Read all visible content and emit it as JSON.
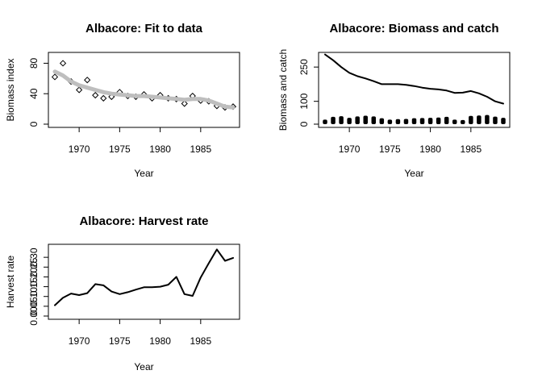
{
  "chart_data": [
    {
      "id": "fit",
      "type": "scatter",
      "title": "Albacore: Fit to data",
      "xlabel": "Year",
      "ylabel": "Biomass index",
      "xlim": [
        1967,
        1989
      ],
      "ylim": [
        0,
        90
      ],
      "xticks": [
        1970,
        1975,
        1980,
        1985
      ],
      "yticks": [
        0,
        40,
        80
      ],
      "series": [
        {
          "kind": "points",
          "x": [
            1967,
            1968,
            1969,
            1970,
            1971,
            1972,
            1973,
            1974,
            1975,
            1976,
            1977,
            1978,
            1979,
            1980,
            1981,
            1982,
            1983,
            1984,
            1985,
            1986,
            1987,
            1988,
            1989
          ],
          "y": [
            62,
            80,
            56,
            45,
            58,
            38,
            34,
            36,
            42,
            37,
            36,
            39,
            34,
            38,
            34,
            33,
            27,
            37,
            31,
            30,
            24,
            22,
            23
          ]
        },
        {
          "kind": "line",
          "color": "#bebebe",
          "x": [
            1967,
            1968,
            1969,
            1970,
            1971,
            1972,
            1973,
            1974,
            1975,
            1976,
            1977,
            1978,
            1979,
            1980,
            1981,
            1982,
            1983,
            1984,
            1985,
            1986,
            1987,
            1988,
            1989
          ],
          "y": [
            69,
            64,
            56,
            51,
            48,
            45,
            42,
            40,
            39,
            38,
            37,
            37,
            36,
            35,
            34,
            33,
            32,
            33,
            33,
            31,
            27,
            23,
            22
          ]
        }
      ]
    },
    {
      "id": "biomass",
      "type": "line",
      "title": "Albacore: Biomass and catch",
      "xlabel": "Year",
      "ylabel": "Biomass and catch",
      "xlim": [
        1967,
        1989
      ],
      "ylim": [
        0,
        300
      ],
      "xticks": [
        1970,
        1975,
        1980,
        1985
      ],
      "yticks": [
        0,
        100,
        250
      ],
      "series": [
        {
          "kind": "line",
          "x": [
            1967,
            1968,
            1969,
            1970,
            1971,
            1972,
            1973,
            1974,
            1975,
            1976,
            1977,
            1978,
            1979,
            1980,
            1981,
            1982,
            1983,
            1984,
            1985,
            1986,
            1987,
            1988,
            1989
          ],
          "y": [
            305,
            280,
            250,
            225,
            210,
            200,
            188,
            175,
            175,
            175,
            172,
            167,
            160,
            155,
            152,
            147,
            137,
            138,
            145,
            135,
            120,
            100,
            90
          ]
        },
        {
          "kind": "bars",
          "x": [
            1967,
            1968,
            1969,
            1970,
            1971,
            1972,
            1973,
            1974,
            1975,
            1976,
            1977,
            1978,
            1979,
            1980,
            1981,
            1982,
            1983,
            1984,
            1985,
            1986,
            1987,
            1988,
            1989
          ],
          "y": [
            20,
            32,
            35,
            28,
            34,
            37,
            34,
            26,
            20,
            22,
            23,
            26,
            27,
            28,
            29,
            32,
            20,
            18,
            36,
            38,
            40,
            33,
            28
          ]
        }
      ]
    },
    {
      "id": "harvest",
      "type": "line",
      "title": "Albacore: Harvest rate",
      "xlabel": "Year",
      "ylabel": "Harvest rate",
      "xlim": [
        1967,
        1989
      ],
      "ylim": [
        0,
        0.35
      ],
      "xticks": [
        1970,
        1975,
        1980,
        1985
      ],
      "yticks": [
        0.0,
        0.05,
        0.1,
        0.15,
        0.2,
        0.25,
        0.3
      ],
      "yticklabels": [
        "0.00",
        "0.05",
        "0.10",
        "0.15",
        "0.20",
        "0.25",
        "0.30"
      ],
      "series": [
        {
          "kind": "line",
          "x": [
            1967,
            1968,
            1969,
            1970,
            1971,
            1972,
            1973,
            1974,
            1975,
            1976,
            1977,
            1978,
            1979,
            1980,
            1981,
            1982,
            1983,
            1984,
            1985,
            1986,
            1987,
            1988,
            1989
          ],
          "y": [
            0.055,
            0.093,
            0.115,
            0.107,
            0.117,
            0.163,
            0.157,
            0.125,
            0.112,
            0.122,
            0.135,
            0.147,
            0.147,
            0.15,
            0.16,
            0.2,
            0.112,
            0.103,
            0.197,
            0.27,
            0.34,
            0.282,
            0.297
          ]
        }
      ]
    }
  ]
}
